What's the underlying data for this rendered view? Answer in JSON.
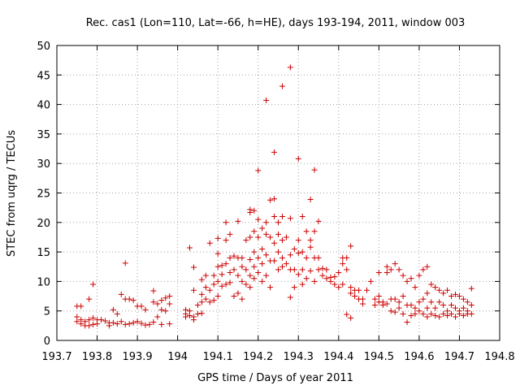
{
  "chart_data": {
    "type": "scatter",
    "title": "Rec. cas1 (Lon=110, Lat=-66, h=HE), days 193-194, 2011, window 003",
    "xlabel": "GPS time / Days of year 2011",
    "ylabel": "STEC from uqrg / TECUs",
    "xlim": [
      193.7,
      194.8
    ],
    "ylim": [
      0,
      50
    ],
    "x_ticks": [
      193.7,
      193.8,
      193.9,
      194.0,
      194.1,
      194.2,
      194.3,
      194.4,
      194.5,
      194.6,
      194.7,
      194.8
    ],
    "x_tick_labels": [
      "193.7",
      "193.8",
      "193.9",
      "194",
      "194.1",
      "194.2",
      "194.3",
      "194.4",
      "194.5",
      "194.6",
      "194.7",
      "194.8"
    ],
    "y_ticks": [
      0,
      5,
      10,
      15,
      20,
      25,
      30,
      35,
      40,
      45,
      50
    ],
    "y_tick_labels": [
      "0",
      "5",
      "10",
      "15",
      "20",
      "25",
      "30",
      "35",
      "40",
      "45",
      "50"
    ],
    "grid": true,
    "marker": "+",
    "color": "#cc0000",
    "points": [
      [
        193.75,
        5.8
      ],
      [
        193.75,
        4.0
      ],
      [
        193.75,
        3.2
      ],
      [
        193.76,
        5.8
      ],
      [
        193.76,
        3.5
      ],
      [
        193.76,
        2.8
      ],
      [
        193.77,
        3.2
      ],
      [
        193.77,
        2.5
      ],
      [
        193.78,
        7.0
      ],
      [
        193.78,
        3.5
      ],
      [
        193.78,
        2.5
      ],
      [
        193.79,
        9.5
      ],
      [
        193.79,
        3.8
      ],
      [
        193.79,
        2.7
      ],
      [
        193.8,
        3.5
      ],
      [
        193.8,
        2.8
      ],
      [
        193.81,
        3.5
      ],
      [
        193.82,
        3.3
      ],
      [
        193.83,
        3.0
      ],
      [
        193.83,
        2.5
      ],
      [
        193.84,
        5.2
      ],
      [
        193.84,
        3.0
      ],
      [
        193.85,
        4.5
      ],
      [
        193.85,
        2.8
      ],
      [
        193.86,
        7.8
      ],
      [
        193.86,
        3.2
      ],
      [
        193.87,
        13.1
      ],
      [
        193.87,
        7.0
      ],
      [
        193.87,
        2.7
      ],
      [
        193.88,
        7.0
      ],
      [
        193.88,
        2.8
      ],
      [
        193.89,
        6.8
      ],
      [
        193.89,
        3.0
      ],
      [
        193.9,
        5.8
      ],
      [
        193.9,
        3.2
      ],
      [
        193.91,
        5.8
      ],
      [
        193.91,
        2.9
      ],
      [
        193.92,
        5.2
      ],
      [
        193.92,
        2.6
      ],
      [
        193.93,
        2.7
      ],
      [
        193.94,
        8.4
      ],
      [
        193.94,
        6.5
      ],
      [
        193.94,
        3.1
      ],
      [
        193.95,
        6.2
      ],
      [
        193.95,
        4.0
      ],
      [
        193.96,
        6.8
      ],
      [
        193.96,
        5.2
      ],
      [
        193.96,
        2.7
      ],
      [
        193.97,
        7.2
      ],
      [
        193.97,
        5.0
      ],
      [
        193.98,
        6.2
      ],
      [
        193.98,
        7.5
      ],
      [
        193.98,
        2.8
      ],
      [
        194.02,
        5.2
      ],
      [
        194.02,
        4.5
      ],
      [
        194.02,
        4.0
      ],
      [
        194.03,
        15.7
      ],
      [
        194.03,
        5.0
      ],
      [
        194.03,
        4.2
      ],
      [
        194.04,
        12.4
      ],
      [
        194.04,
        8.5
      ],
      [
        194.04,
        4.0
      ],
      [
        194.04,
        3.5
      ],
      [
        194.05,
        6.0
      ],
      [
        194.05,
        4.5
      ],
      [
        194.06,
        10.3
      ],
      [
        194.06,
        7.8
      ],
      [
        194.06,
        6.5
      ],
      [
        194.06,
        4.6
      ],
      [
        194.07,
        11.0
      ],
      [
        194.07,
        9.0
      ],
      [
        194.07,
        7.0
      ],
      [
        194.08,
        16.5
      ],
      [
        194.08,
        8.5
      ],
      [
        194.08,
        6.5
      ],
      [
        194.09,
        11.0
      ],
      [
        194.09,
        9.5
      ],
      [
        194.09,
        6.8
      ],
      [
        194.1,
        17.3
      ],
      [
        194.1,
        14.7
      ],
      [
        194.1,
        12.5
      ],
      [
        194.1,
        10.0
      ],
      [
        194.1,
        7.5
      ],
      [
        194.11,
        12.7
      ],
      [
        194.11,
        11.2
      ],
      [
        194.11,
        9.2
      ],
      [
        194.12,
        20.0
      ],
      [
        194.12,
        17.0
      ],
      [
        194.12,
        13.0
      ],
      [
        194.12,
        9.5
      ],
      [
        194.13,
        18.0
      ],
      [
        194.13,
        14.0
      ],
      [
        194.13,
        11.5
      ],
      [
        194.13,
        9.8
      ],
      [
        194.14,
        14.3
      ],
      [
        194.14,
        12.0
      ],
      [
        194.14,
        7.5
      ],
      [
        194.15,
        20.2
      ],
      [
        194.15,
        14.0
      ],
      [
        194.15,
        11.0
      ],
      [
        194.15,
        8.0
      ],
      [
        194.16,
        14.0
      ],
      [
        194.16,
        12.5
      ],
      [
        194.16,
        10.0
      ],
      [
        194.16,
        7.0
      ],
      [
        194.17,
        17.0
      ],
      [
        194.17,
        12.0
      ],
      [
        194.17,
        9.5
      ],
      [
        194.18,
        22.2
      ],
      [
        194.18,
        21.7
      ],
      [
        194.18,
        17.5
      ],
      [
        194.18,
        13.7
      ],
      [
        194.18,
        11.0
      ],
      [
        194.18,
        9.0
      ],
      [
        194.19,
        22.0
      ],
      [
        194.19,
        18.5
      ],
      [
        194.19,
        15.0
      ],
      [
        194.19,
        12.5
      ],
      [
        194.19,
        10.5
      ],
      [
        194.2,
        28.8
      ],
      [
        194.2,
        20.5
      ],
      [
        194.2,
        17.5
      ],
      [
        194.2,
        14.0
      ],
      [
        194.2,
        11.5
      ],
      [
        194.21,
        19.0
      ],
      [
        194.21,
        15.5
      ],
      [
        194.21,
        13.0
      ],
      [
        194.21,
        10.0
      ],
      [
        194.22,
        40.7
      ],
      [
        194.22,
        20.0
      ],
      [
        194.22,
        18.0
      ],
      [
        194.22,
        14.5
      ],
      [
        194.22,
        11.0
      ],
      [
        194.23,
        23.8
      ],
      [
        194.23,
        17.5
      ],
      [
        194.23,
        13.5
      ],
      [
        194.23,
        9.0
      ],
      [
        194.24,
        31.9
      ],
      [
        194.24,
        24.0
      ],
      [
        194.24,
        21.0
      ],
      [
        194.24,
        16.5
      ],
      [
        194.24,
        13.5
      ],
      [
        194.25,
        20.0
      ],
      [
        194.25,
        18.0
      ],
      [
        194.25,
        15.0
      ],
      [
        194.25,
        12.0
      ],
      [
        194.26,
        43.1
      ],
      [
        194.26,
        21.0
      ],
      [
        194.26,
        17.0
      ],
      [
        194.26,
        14.0
      ],
      [
        194.26,
        12.5
      ],
      [
        194.27,
        17.5
      ],
      [
        194.27,
        13.0
      ],
      [
        194.28,
        46.3
      ],
      [
        194.28,
        20.7
      ],
      [
        194.28,
        14.5
      ],
      [
        194.28,
        12.0
      ],
      [
        194.28,
        7.3
      ],
      [
        194.29,
        15.5
      ],
      [
        194.29,
        12.0
      ],
      [
        194.29,
        9.0
      ],
      [
        194.3,
        30.8
      ],
      [
        194.3,
        17.0
      ],
      [
        194.3,
        14.8
      ],
      [
        194.3,
        11.2
      ],
      [
        194.31,
        21.0
      ],
      [
        194.31,
        15.0
      ],
      [
        194.31,
        12.0
      ],
      [
        194.31,
        9.5
      ],
      [
        194.32,
        18.5
      ],
      [
        194.32,
        14.0
      ],
      [
        194.32,
        10.5
      ],
      [
        194.33,
        23.9
      ],
      [
        194.33,
        17.0
      ],
      [
        194.33,
        15.8
      ],
      [
        194.33,
        11.8
      ],
      [
        194.34,
        28.9
      ],
      [
        194.34,
        18.5
      ],
      [
        194.34,
        14.0
      ],
      [
        194.34,
        10.0
      ],
      [
        194.35,
        20.2
      ],
      [
        194.35,
        14.0
      ],
      [
        194.35,
        12.0
      ],
      [
        194.36,
        12.2
      ],
      [
        194.36,
        11.0
      ],
      [
        194.37,
        12.0
      ],
      [
        194.37,
        10.5
      ],
      [
        194.38,
        10.7
      ],
      [
        194.38,
        10.0
      ],
      [
        194.39,
        10.8
      ],
      [
        194.39,
        9.5
      ],
      [
        194.4,
        11.5
      ],
      [
        194.4,
        9.0
      ],
      [
        194.41,
        14.0
      ],
      [
        194.41,
        13.0
      ],
      [
        194.41,
        9.5
      ],
      [
        194.42,
        14.0
      ],
      [
        194.42,
        12.0
      ],
      [
        194.42,
        4.4
      ],
      [
        194.43,
        16.0
      ],
      [
        194.43,
        9.0
      ],
      [
        194.43,
        8.0
      ],
      [
        194.43,
        3.8
      ],
      [
        194.44,
        8.5
      ],
      [
        194.44,
        7.5
      ],
      [
        194.45,
        8.5
      ],
      [
        194.45,
        7.0
      ],
      [
        194.46,
        7.0
      ],
      [
        194.46,
        6.2
      ],
      [
        194.47,
        8.5
      ],
      [
        194.48,
        10.0
      ],
      [
        194.49,
        7.0
      ],
      [
        194.49,
        6.0
      ],
      [
        194.5,
        11.5
      ],
      [
        194.5,
        7.5
      ],
      [
        194.5,
        6.5
      ],
      [
        194.51,
        6.5
      ],
      [
        194.51,
        6.0
      ],
      [
        194.52,
        12.5
      ],
      [
        194.52,
        11.5
      ],
      [
        194.52,
        6.2
      ],
      [
        194.53,
        12.0
      ],
      [
        194.53,
        7.0
      ],
      [
        194.53,
        5.0
      ],
      [
        194.54,
        13.0
      ],
      [
        194.54,
        7.0
      ],
      [
        194.54,
        4.8
      ],
      [
        194.55,
        12.0
      ],
      [
        194.55,
        6.5
      ],
      [
        194.55,
        5.5
      ],
      [
        194.56,
        11.0
      ],
      [
        194.56,
        7.5
      ],
      [
        194.56,
        4.5
      ],
      [
        194.57,
        10.0
      ],
      [
        194.57,
        6.0
      ],
      [
        194.57,
        3.1
      ],
      [
        194.58,
        10.5
      ],
      [
        194.58,
        6.0
      ],
      [
        194.58,
        4.2
      ],
      [
        194.59,
        9.0
      ],
      [
        194.59,
        5.5
      ],
      [
        194.59,
        4.5
      ],
      [
        194.6,
        11.0
      ],
      [
        194.6,
        6.5
      ],
      [
        194.6,
        5.0
      ],
      [
        194.61,
        12.0
      ],
      [
        194.61,
        7.0
      ],
      [
        194.61,
        4.5
      ],
      [
        194.62,
        12.5
      ],
      [
        194.62,
        8.0
      ],
      [
        194.62,
        5.5
      ],
      [
        194.62,
        4.0
      ],
      [
        194.63,
        9.5
      ],
      [
        194.63,
        6.5
      ],
      [
        194.63,
        4.5
      ],
      [
        194.64,
        9.0
      ],
      [
        194.64,
        5.5
      ],
      [
        194.64,
        4.2
      ],
      [
        194.65,
        8.5
      ],
      [
        194.65,
        6.5
      ],
      [
        194.65,
        4.0
      ],
      [
        194.66,
        8.0
      ],
      [
        194.66,
        6.0
      ],
      [
        194.66,
        4.5
      ],
      [
        194.67,
        8.5
      ],
      [
        194.67,
        5.0
      ],
      [
        194.67,
        4.2
      ],
      [
        194.68,
        7.5
      ],
      [
        194.68,
        6.0
      ],
      [
        194.68,
        4.5
      ],
      [
        194.69,
        7.8
      ],
      [
        194.69,
        5.5
      ],
      [
        194.69,
        4.0
      ],
      [
        194.7,
        7.5
      ],
      [
        194.7,
        5.0
      ],
      [
        194.7,
        4.5
      ],
      [
        194.71,
        7.0
      ],
      [
        194.71,
        5.5
      ],
      [
        194.71,
        4.2
      ],
      [
        194.72,
        6.5
      ],
      [
        194.72,
        5.0
      ],
      [
        194.72,
        4.5
      ],
      [
        194.73,
        8.8
      ],
      [
        194.73,
        6.0
      ],
      [
        194.73,
        4.5
      ]
    ]
  }
}
